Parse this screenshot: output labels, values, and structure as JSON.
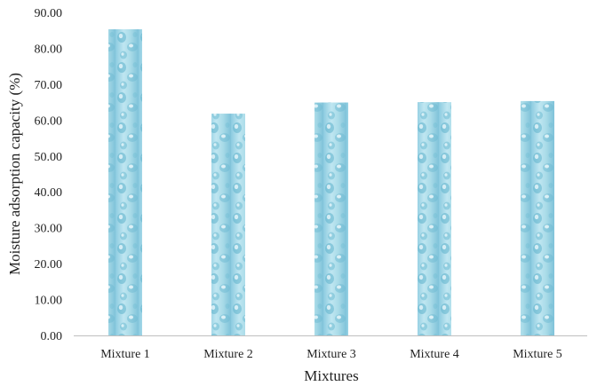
{
  "chart_data": {
    "type": "bar",
    "title": "",
    "xlabel": "Mixtures",
    "ylabel": "Moisture adsorption capacity (%)",
    "categories": [
      "Mixture 1",
      "Mixture 2",
      "Mixture 3",
      "Mixture 4",
      "Mixture 5"
    ],
    "values": [
      85.3,
      61.8,
      64.9,
      65.0,
      65.3
    ],
    "ylim": [
      0,
      90
    ],
    "ytick_step": 10,
    "ytick_labels": [
      "0.00",
      "10.00",
      "20.00",
      "30.00",
      "40.00",
      "50.00",
      "60.00",
      "70.00",
      "80.00",
      "90.00"
    ],
    "grid": false,
    "legend": "none",
    "bar_fill": "water-droplet texture",
    "colors": {
      "bar_base": "#a9dbe8",
      "bar_light": "#e3f4f9",
      "bar_dark": "#5fb3cc",
      "axis": "#bfbfbf",
      "text": "#222222"
    }
  }
}
